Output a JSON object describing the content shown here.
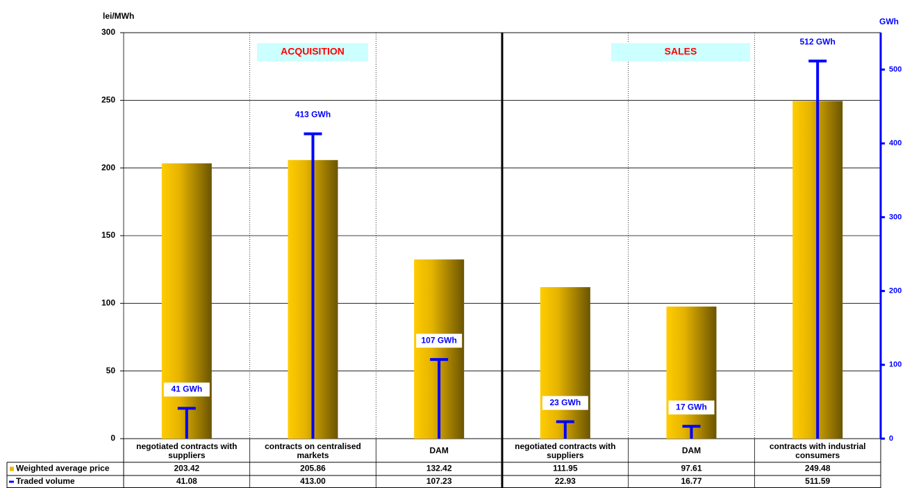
{
  "chart_data": {
    "type": "bar",
    "y_label": "lei/MWh",
    "y2_label": "GWh",
    "categories": [
      "negotiated contracts with suppliers",
      "contracts on centralised markets",
      "DAM",
      "negotiated contracts with suppliers",
      "DAM",
      "contracts with industrial consumers"
    ],
    "series": [
      {
        "name": "Weighted average price",
        "type": "bar",
        "color": "#e8b800",
        "values": [
          203.42,
          205.86,
          132.42,
          111.95,
          97.61,
          249.48
        ]
      },
      {
        "name": "Traded volume",
        "type": "stem",
        "axis": "y2",
        "color": "#0000ff",
        "values": [
          41.08,
          413.0,
          107.23,
          22.93,
          16.77,
          511.59
        ],
        "value_labels": [
          "41 GWh",
          "413 GWh",
          "107 GWh",
          "23 GWh",
          "17 GWh",
          "512 GWh"
        ],
        "table_labels": [
          "41.08",
          "413.00",
          "107.23",
          "22.93",
          "16.77",
          "511.59"
        ]
      }
    ],
    "ylim": [
      0,
      300
    ],
    "yticks": [
      0,
      50,
      100,
      150,
      200,
      250,
      300
    ],
    "y2lim": [
      0,
      550
    ],
    "y2ticks": [
      0,
      100,
      200,
      300,
      400,
      500
    ],
    "annotations": [
      "ACQUISITION",
      "SALES"
    ],
    "grid": true
  }
}
